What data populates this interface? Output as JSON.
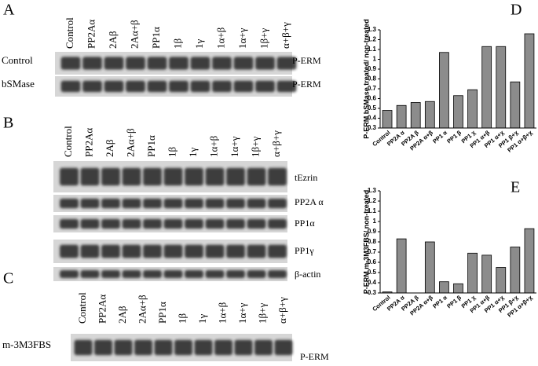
{
  "panels": [
    {
      "letter": "A",
      "lanes": [
        "Control",
        "PP2Aα",
        "2Aβ",
        "2Aα+β",
        "PP1α",
        "1β",
        "1γ",
        "1α+β",
        "1α+γ",
        "1β+γ",
        "α+β+γ"
      ],
      "rows": [
        {
          "left": "Control",
          "right": "P-ERM"
        },
        {
          "left": "bSMase",
          "right": "P-ERM"
        }
      ]
    },
    {
      "letter": "B",
      "lanes": [
        "Control",
        "PP2Aα",
        "2Aβ",
        "2Aα+β",
        "PP1α",
        "1β",
        "1γ",
        "1α+β",
        "1α+γ",
        "1β+γ",
        "α+β+γ"
      ],
      "rows": [
        {
          "right": "tEzrin"
        },
        {
          "right": "PP2A α"
        },
        {
          "right": "PP1α"
        },
        {
          "right": "PP1γ"
        },
        {
          "right": "β-actin"
        }
      ]
    },
    {
      "letter": "C",
      "lanes": [
        "Control",
        "PP2Aα",
        "2Aβ",
        "2Aα+β",
        "PP1α",
        "1β",
        "1γ",
        "1α+β",
        "1α+γ",
        "1β+γ",
        "α+β+γ"
      ],
      "rows": [
        {
          "left": "m-3M3FBS",
          "right": "P-ERM"
        }
      ]
    }
  ],
  "chart_data": [
    {
      "type": "bar",
      "title": "D",
      "y_label": "P-ERM bSMase treated/ non-treated",
      "categories": [
        "Control",
        "PP2A α",
        "PP2A β",
        "PP2A α+β",
        "PP1 α",
        "PP1 β",
        "PP1 χ",
        "PP1 α+β",
        "PP1 α+χ",
        "PP1 β+χ",
        "PP1 α+β+χ"
      ],
      "values": [
        0.48,
        0.53,
        0.56,
        0.57,
        1.07,
        0.63,
        0.69,
        1.13,
        1.13,
        0.77,
        1.26
      ],
      "color": "#8c8c8c",
      "ylim": [
        0.3,
        1.3
      ],
      "yticks": [
        0.3,
        0.4,
        0.5,
        0.6,
        0.7,
        0.8,
        0.9,
        1,
        1.1,
        1.2,
        1.3
      ]
    },
    {
      "type": "bar",
      "title": "E",
      "y_label": "P-ERM m-3M3FBS/ non-treated",
      "categories": [
        "Control",
        "PP2A α",
        "PP2A β",
        "PP2A α+β",
        "PP1 α",
        "PP1 β",
        "PP1 χ",
        "PP1 α+β",
        "PP1 α+χ",
        "PP1 β+χ",
        "PP1 α+β+χ"
      ],
      "values": [
        0.31,
        0.83,
        0.3,
        0.8,
        0.41,
        0.39,
        0.69,
        0.67,
        0.55,
        0.75,
        0.93
      ],
      "color": "#8c8c8c",
      "ylim": [
        0.3,
        1.3
      ],
      "yticks": [
        0.3,
        0.4,
        0.5,
        0.6,
        0.7,
        0.8,
        0.9,
        1,
        1.1,
        1.2,
        1.3
      ]
    }
  ]
}
